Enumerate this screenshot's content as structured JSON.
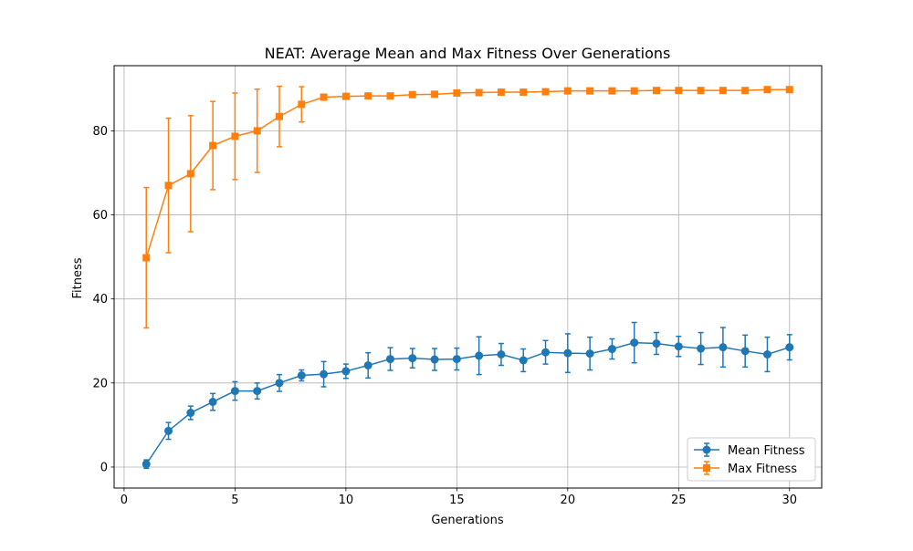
{
  "chart_data": {
    "type": "line",
    "title": "NEAT: Average Mean and Max Fitness Over Generations",
    "xlabel": "Generations",
    "ylabel": "Fitness",
    "xlim": [
      -0.45,
      31.45
    ],
    "ylim": [
      -5,
      95.5
    ],
    "xticks": [
      0,
      5,
      10,
      15,
      20,
      25,
      30
    ],
    "yticks": [
      0,
      20,
      40,
      60,
      80
    ],
    "grid": true,
    "legend_position": "lower right",
    "x": [
      1,
      2,
      3,
      4,
      5,
      6,
      7,
      8,
      9,
      10,
      11,
      12,
      13,
      14,
      15,
      16,
      17,
      18,
      19,
      20,
      21,
      22,
      23,
      24,
      25,
      26,
      27,
      28,
      29,
      30
    ],
    "series": [
      {
        "name": "Mean Fitness",
        "color": "#1f77b4",
        "marker": "circle",
        "values": [
          0.7,
          8.6,
          12.9,
          15.5,
          18.1,
          18.1,
          20.0,
          21.8,
          22.1,
          22.8,
          24.2,
          25.7,
          25.9,
          25.6,
          25.7,
          26.5,
          26.8,
          25.4,
          27.3,
          27.1,
          27.0,
          28.1,
          29.6,
          29.4,
          28.7,
          28.2,
          28.5,
          27.6,
          26.8,
          28.5
        ],
        "errors": [
          1.0,
          2.0,
          1.6,
          2.0,
          2.2,
          1.9,
          2.0,
          1.3,
          3.0,
          1.7,
          3.0,
          2.7,
          2.3,
          2.6,
          2.6,
          4.5,
          2.6,
          2.7,
          2.8,
          4.6,
          3.9,
          2.4,
          4.8,
          2.6,
          2.4,
          3.8,
          4.7,
          3.8,
          4.1,
          3.0
        ]
      },
      {
        "name": "Max Fitness",
        "color": "#ff7f0e",
        "marker": "square",
        "values": [
          49.8,
          67.0,
          69.8,
          76.5,
          78.7,
          80.0,
          83.4,
          86.3,
          88.0,
          88.2,
          88.3,
          88.3,
          88.6,
          88.7,
          89.0,
          89.1,
          89.2,
          89.2,
          89.3,
          89.5,
          89.5,
          89.5,
          89.5,
          89.6,
          89.6,
          89.6,
          89.6,
          89.6,
          89.8,
          89.8
        ],
        "errors": [
          16.7,
          16.0,
          13.8,
          10.5,
          10.3,
          9.9,
          7.2,
          4.2,
          0.7,
          0.4,
          0.4,
          0.3,
          0.3,
          0.3,
          0.3,
          0.3,
          0.3,
          0.3,
          0.3,
          0.3,
          0.2,
          0.2,
          0.2,
          0.2,
          0.2,
          0.2,
          0.2,
          0.2,
          0.2,
          0.2
        ]
      }
    ]
  }
}
